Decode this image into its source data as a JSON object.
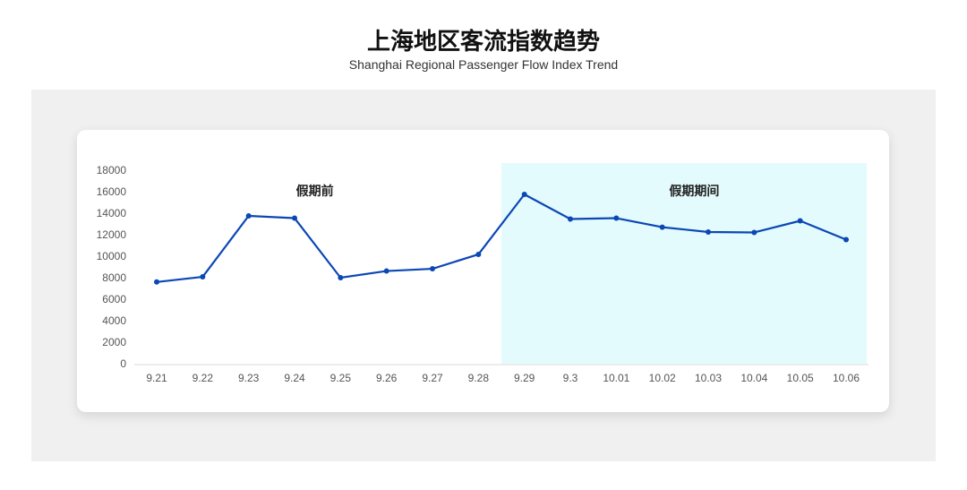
{
  "header": {
    "title": "上海地区客流指数趋势",
    "subtitle": "Shanghai Regional Passenger Flow Index Trend"
  },
  "chart_data": {
    "type": "line",
    "title": "上海地区客流指数趋势",
    "subtitle": "Shanghai Regional Passenger Flow Index Trend",
    "categories": [
      "9.21",
      "9.22",
      "9.23",
      "9.24",
      "9.25",
      "9.26",
      "9.27",
      "9.28",
      "9.29",
      "9.3",
      "10.01",
      "10.02",
      "10.03",
      "10.04",
      "10.05",
      "10.06"
    ],
    "series": [
      {
        "values": [
          7600,
          8080,
          13750,
          13540,
          8000,
          8620,
          8830,
          10170,
          15750,
          13460,
          13540,
          12700,
          12250,
          12210,
          13290,
          11540
        ],
        "color": "#0b47b5"
      }
    ],
    "ylim": [
      0,
      18000
    ],
    "yticks": [
      0,
      2000,
      4000,
      6000,
      8000,
      10000,
      12000,
      14000,
      16000,
      18000
    ],
    "grid": false,
    "legend": "none",
    "regions": [
      {
        "label": "假期前",
        "from": "9.21",
        "to": "9.28",
        "color": "#ffffff"
      },
      {
        "label": "假期期间",
        "from": "9.29",
        "to": "10.06",
        "color": "#e3fbfd"
      }
    ]
  }
}
